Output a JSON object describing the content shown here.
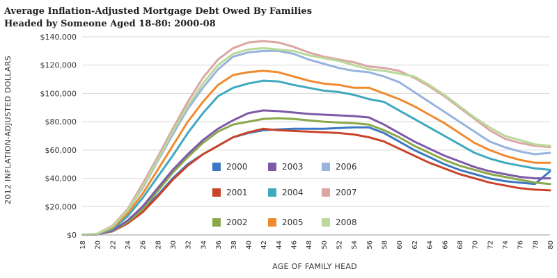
{
  "chart_data": {
    "type": "line",
    "title_line1": "Average Inflation-Adjusted Mortgage Debt Owed By Families",
    "title_line2": "Headed by Someone Aged 18-80: 2000-08",
    "xlabel": "AGE OF FAMILY HEAD",
    "ylabel": "2012 INFLATION-ADJUSTED DOLLARS",
    "xlim": [
      18,
      80
    ],
    "ylim": [
      0,
      140000
    ],
    "x_ticks": [
      "18",
      "20",
      "22",
      "24",
      "26",
      "28",
      "30",
      "32",
      "34",
      "36",
      "38",
      "40",
      "42",
      "44",
      "46",
      "48",
      "50",
      "52",
      "54",
      "56",
      "58",
      "60",
      "62",
      "64",
      "66",
      "68",
      "70",
      "72",
      "74",
      "76",
      "78",
      "80"
    ],
    "y_ticks": [
      "$0",
      "$20,000",
      "$40,000",
      "$60,000",
      "$80,000",
      "$100,000",
      "$120,000",
      "$140,000"
    ],
    "grid": "horizontal",
    "legend_position": "inside-bottom-center",
    "x": [
      18,
      20,
      22,
      24,
      26,
      28,
      30,
      32,
      34,
      36,
      38,
      40,
      42,
      44,
      46,
      48,
      50,
      52,
      54,
      56,
      58,
      60,
      62,
      64,
      66,
      68,
      70,
      72,
      74,
      76,
      78,
      80
    ],
    "series": [
      {
        "name": "2000",
        "color": "#3a78c3",
        "values": [
          0,
          500,
          3000,
          9000,
          18000,
          28000,
          40000,
          50000,
          57000,
          63000,
          69000,
          72000,
          74000,
          74500,
          75000,
          75000,
          75000,
          75500,
          76000,
          76000,
          72000,
          66000,
          60000,
          55000,
          50000,
          46000,
          43000,
          40000,
          38000,
          37000,
          36000,
          45000
        ]
      },
      {
        "name": "2001",
        "color": "#c9442a",
        "values": [
          0,
          400,
          2500,
          8000,
          16000,
          27000,
          39000,
          49000,
          57000,
          63000,
          69000,
          72500,
          75000,
          74000,
          73500,
          73000,
          72500,
          72000,
          71000,
          69000,
          66000,
          61000,
          56000,
          51000,
          47000,
          43000,
          40000,
          37000,
          35000,
          33000,
          32000,
          31500
        ]
      },
      {
        "name": "2002",
        "color": "#8aa84a",
        "values": [
          0,
          400,
          2800,
          9000,
          18000,
          31000,
          44000,
          55000,
          65000,
          73000,
          78000,
          80000,
          82000,
          82500,
          82000,
          81000,
          80000,
          79500,
          79000,
          78000,
          74000,
          69000,
          63000,
          58000,
          53000,
          49000,
          46000,
          43000,
          41000,
          39000,
          37000,
          36000
        ]
      },
      {
        "name": "2003",
        "color": "#7d5aa6",
        "values": [
          0,
          500,
          3000,
          10000,
          20000,
          33000,
          46000,
          57000,
          67000,
          75000,
          81000,
          86000,
          88000,
          87500,
          86500,
          85500,
          85000,
          84500,
          84000,
          83000,
          78000,
          72000,
          66000,
          61000,
          56000,
          52000,
          48000,
          45000,
          43000,
          41000,
          40000,
          40000
        ]
      },
      {
        "name": "2004",
        "color": "#3ea9bf",
        "values": [
          0,
          600,
          4000,
          13000,
          26000,
          41000,
          56000,
          72000,
          86000,
          98000,
          104000,
          107000,
          109000,
          108500,
          106000,
          104000,
          102000,
          101000,
          99000,
          96000,
          94000,
          88000,
          82000,
          76000,
          70000,
          64000,
          58000,
          54000,
          51000,
          49000,
          47000,
          46000
        ]
      },
      {
        "name": "2005",
        "color": "#f08a2e",
        "values": [
          0,
          700,
          5000,
          15000,
          29000,
          46000,
          63000,
          80000,
          94000,
          106000,
          113000,
          115000,
          116000,
          115000,
          112000,
          109000,
          107000,
          106000,
          104000,
          104000,
          100000,
          96000,
          91000,
          85000,
          79000,
          72000,
          65000,
          60000,
          56000,
          53000,
          51000,
          51000
        ]
      },
      {
        "name": "2006",
        "color": "#97b3de",
        "values": [
          0,
          800,
          6000,
          17000,
          33000,
          52000,
          71000,
          89000,
          104000,
          117000,
          126000,
          129000,
          130000,
          130000,
          128000,
          124000,
          121000,
          118000,
          116000,
          115000,
          112000,
          108000,
          101000,
          94000,
          87000,
          80000,
          73000,
          66000,
          62000,
          59000,
          57000,
          58000
        ]
      },
      {
        "name": "2007",
        "color": "#dca5a3",
        "values": [
          0,
          900,
          6500,
          18000,
          36000,
          55000,
          75000,
          94000,
          111000,
          124000,
          132000,
          136000,
          137000,
          136000,
          133000,
          129000,
          126000,
          124000,
          122000,
          119000,
          118000,
          116000,
          111000,
          105000,
          98000,
          90000,
          82000,
          74000,
          68000,
          65000,
          63000,
          62000
        ]
      },
      {
        "name": "2008",
        "color": "#b9d99a",
        "values": [
          0,
          800,
          6000,
          17000,
          34000,
          53000,
          73000,
          91000,
          107000,
          120000,
          128000,
          131000,
          132000,
          131000,
          130000,
          127000,
          125000,
          123000,
          120000,
          117000,
          116000,
          114000,
          112000,
          106000,
          99000,
          91000,
          83000,
          76000,
          70000,
          67000,
          64000,
          63000
        ]
      }
    ]
  }
}
